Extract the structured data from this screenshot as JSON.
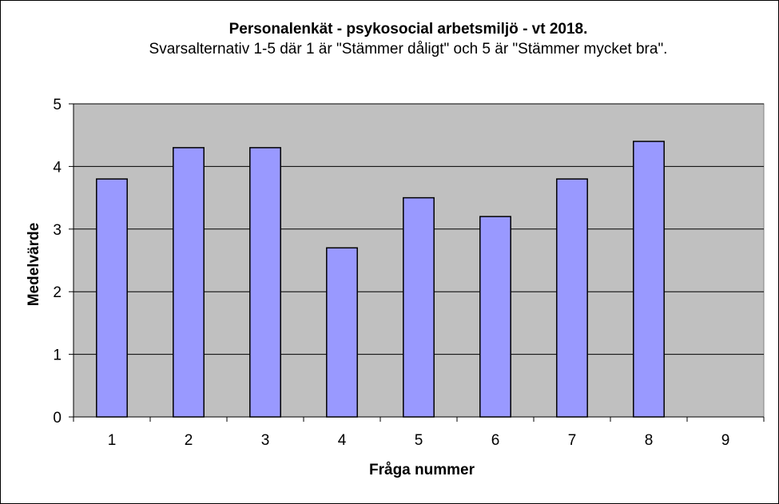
{
  "chart_data": {
    "type": "bar",
    "title": "Personalenkät - psykosocial arbetsmiljö - vt 2018.",
    "subtitle": "Svarsalternativ 1-5 där 1 är \"Stämmer dåligt\" och 5 är \"Stämmer mycket bra\".",
    "xlabel": "Fråga nummer",
    "ylabel": "Medelvärde",
    "categories": [
      "1",
      "2",
      "3",
      "4",
      "5",
      "6",
      "7",
      "8",
      "9"
    ],
    "values": [
      3.8,
      4.3,
      4.3,
      2.7,
      3.5,
      3.2,
      3.8,
      4.4,
      null
    ],
    "ylim": [
      0,
      5
    ],
    "yticks": [
      "0",
      "1",
      "2",
      "3",
      "4",
      "5"
    ],
    "grid": true,
    "legend": "none",
    "colors": {
      "bar_fill": "#9999ff",
      "plot_background": "#c0c0c0",
      "gridline": "#000000"
    }
  }
}
